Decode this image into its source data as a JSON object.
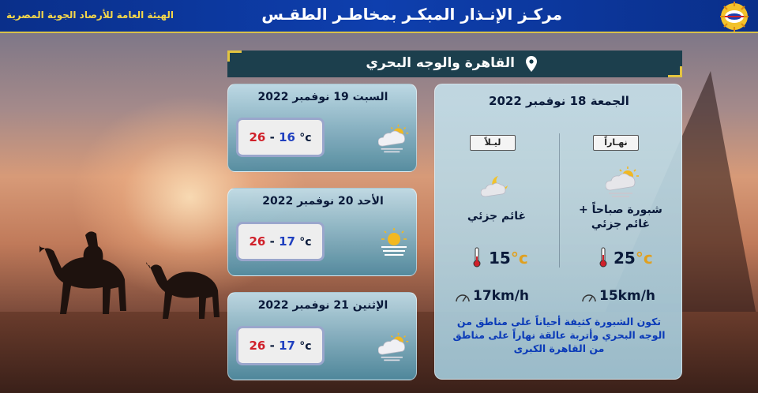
{
  "header": {
    "title": "مركـز الإنـذار المبكـر بمخاطـر الطقـس",
    "organization": "الهيئة العامة للأرصاد الجوية المصرية",
    "logo_icon": "meteorological-authority-logo"
  },
  "location": {
    "name": "القاهرة والوجه البحري",
    "icon": "location-pin-icon"
  },
  "today": {
    "date": "الجمعة 18 نوفمبر 2022",
    "day": {
      "label": "نهـاراً",
      "condition": "شبورة صباحاً + غائم جزئي",
      "icon": "sun-cloud-fog-icon",
      "temperature": "25",
      "temp_unit": "°c",
      "wind": "15",
      "wind_unit": "km/h"
    },
    "night": {
      "label": "ليـلاً",
      "condition": "غائم جزئي",
      "icon": "moon-cloud-icon",
      "temperature": "15",
      "temp_unit": "°c",
      "wind": "17",
      "wind_unit": "km/h"
    },
    "description": "تكون الشبورة كثيفة أحياناً على مناطق من الوجه البحري وأتربة عالقة نهاراً على مناطق من القاهرة الكبرى"
  },
  "forecast": [
    {
      "date": "السبت 19 نوفمبر 2022",
      "max": "26",
      "sep": "-",
      "min": "16",
      "unit": "°c",
      "icon": "sun-cloud-fog-icon"
    },
    {
      "date": "الأحد 20 نوفمبر 2022",
      "max": "26",
      "sep": "-",
      "min": "17",
      "unit": "°c",
      "icon": "sun-haze-icon"
    },
    {
      "date": "الإثنين 21 نوفمبر 2022",
      "max": "26",
      "sep": "-",
      "min": "17",
      "unit": "°c",
      "icon": "sun-cloud-fog-icon"
    }
  ],
  "colors": {
    "header_bg": "#0e3fae",
    "accent_gold": "#e2c440",
    "max_temp": "#d0202a",
    "min_temp": "#1f3fbf",
    "description_text": "#0a3ab8"
  }
}
